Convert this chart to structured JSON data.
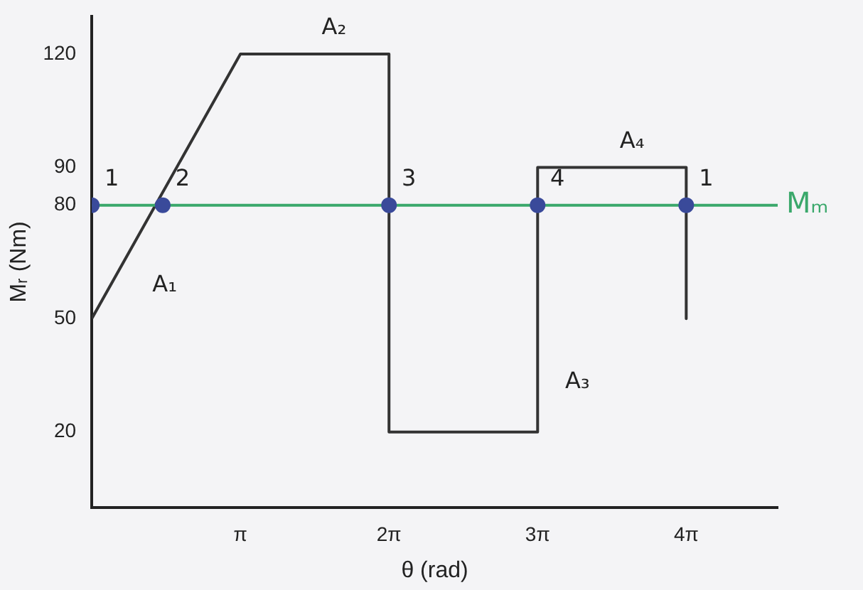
{
  "chart_data": {
    "type": "line",
    "xlabel": "θ (rad)",
    "ylabel": "Mᵣ (Nm)",
    "xlim": [
      0,
      14.5
    ],
    "ylim": [
      0,
      130
    ],
    "xticks": [
      {
        "value": 3.1416,
        "label": "π"
      },
      {
        "value": 6.2832,
        "label": "2π"
      },
      {
        "value": 9.4248,
        "label": "3π"
      },
      {
        "value": 12.5664,
        "label": "4π"
      }
    ],
    "yticks": [
      20,
      50,
      80,
      90,
      120
    ],
    "grid": false,
    "legend": false,
    "series": [
      {
        "color": "#333333",
        "marker": "none",
        "x": [
          0,
          3.1416,
          6.2832,
          6.2832,
          9.4248,
          9.4248,
          12.5664,
          12.5664
        ],
        "values": [
          50,
          120,
          120,
          20,
          20,
          90,
          90,
          50
        ]
      },
      {
        "name": "Mₘ",
        "color": "#3aa86b",
        "marker": "none",
        "x": [
          0,
          14.5
        ],
        "values": [
          80,
          80
        ]
      },
      {
        "type": "scatter",
        "color": "#3a4a9a",
        "marker": "circle",
        "x": [
          0,
          1.5,
          6.2832,
          9.4248,
          12.5664
        ],
        "values": [
          80,
          80,
          80,
          80,
          80
        ]
      }
    ],
    "annotations": [
      {
        "text": "1",
        "x": 0,
        "y": 80
      },
      {
        "text": "2",
        "x": 1.5,
        "y": 80
      },
      {
        "text": "3",
        "x": 6.2832,
        "y": 80
      },
      {
        "text": "4",
        "x": 9.4248,
        "y": 80
      },
      {
        "text": "1",
        "x": 12.5664,
        "y": 80
      },
      {
        "text": "A₁",
        "x": 0.7,
        "y": 65.6
      },
      {
        "text": "A₂",
        "x": 4.7,
        "y": 120
      },
      {
        "text": "A₃",
        "x": 9.4248,
        "y": 40
      },
      {
        "text": "A₄",
        "x": 11,
        "y": 90
      }
    ]
  }
}
